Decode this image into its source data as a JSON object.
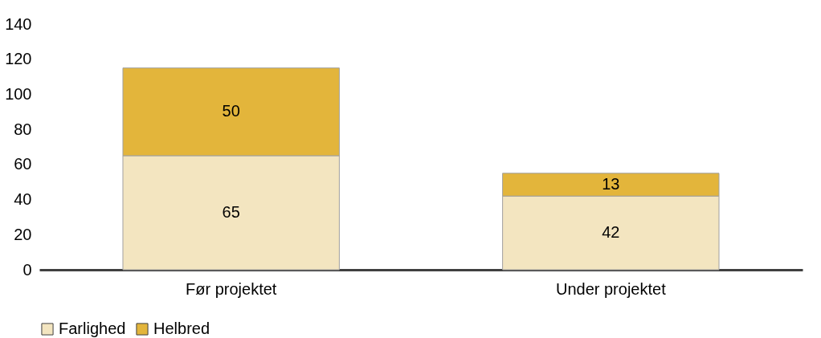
{
  "chart_data": {
    "type": "bar",
    "stacked": true,
    "categories": [
      "Før projektet",
      "Under projektet"
    ],
    "series": [
      {
        "name": "Farlighed",
        "color": "#f3e5c0",
        "values": [
          65,
          42
        ]
      },
      {
        "name": "Helbred",
        "color": "#e3b53b",
        "values": [
          50,
          13
        ]
      }
    ],
    "ylim": [
      0,
      140
    ],
    "yticks": [
      0,
      20,
      40,
      60,
      80,
      100,
      120,
      140
    ],
    "grid": false,
    "legend": "bottom",
    "data_labels": true
  }
}
